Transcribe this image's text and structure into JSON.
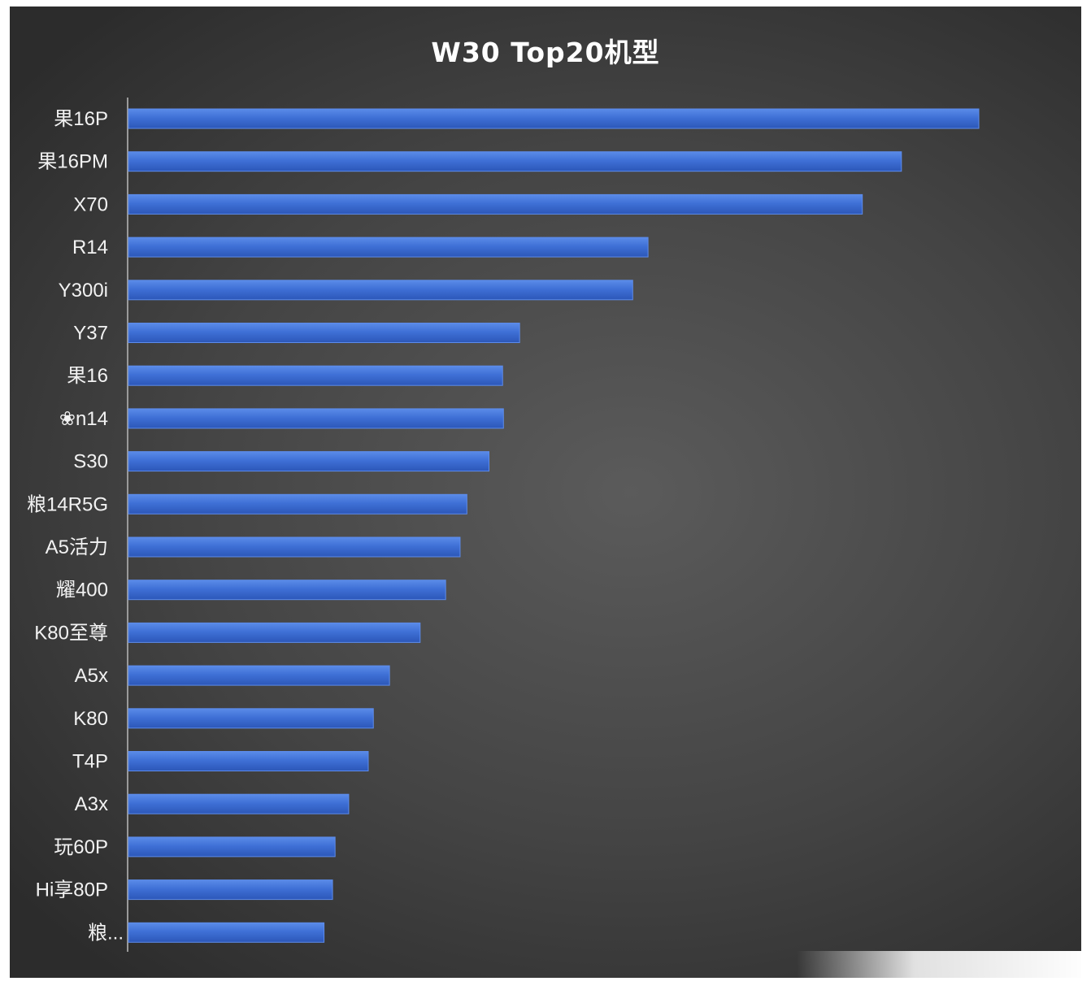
{
  "chart_data": {
    "type": "bar",
    "orientation": "horizontal",
    "title": "W30 Top20机型",
    "xlabel": "",
    "ylabel": "",
    "categories": [
      "果16P",
      "果16PM",
      "X70",
      "R14",
      "Y300i",
      "Y37",
      "果16",
      "❀n14",
      "S30",
      "粮14R5G",
      "A5活力",
      "耀400",
      "K80至尊",
      "A5x",
      "K80",
      "T4P",
      "A3x",
      "玩60P",
      "Hi享80P",
      "粮..."
    ],
    "values": [
      100,
      90.9,
      86.3,
      61.1,
      59.3,
      46.0,
      44.0,
      44.1,
      42.4,
      39.8,
      39.0,
      37.3,
      34.3,
      30.7,
      28.8,
      28.2,
      25.9,
      24.3,
      24.0,
      23.0
    ],
    "xlim": [
      0,
      100
    ],
    "grid": false,
    "legend": "none",
    "bar_color": "#3c6fd8",
    "bar_edge_color": "#5d8cec"
  }
}
